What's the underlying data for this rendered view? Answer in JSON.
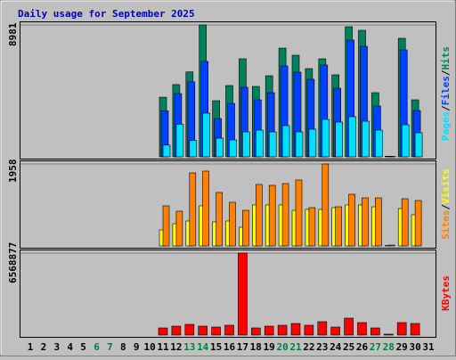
{
  "chart_data": [
    {
      "type": "bar",
      "title": "Daily usage for September 2025",
      "title_color": "#0000c0",
      "legend_separator": "/",
      "ylim": [
        0,
        8981
      ],
      "yticks": [
        8981
      ],
      "series": [
        {
          "name": "Hits",
          "color": "#00805c",
          "values": [
            0,
            0,
            0,
            0,
            0,
            0,
            0,
            0,
            0,
            0,
            4060,
            4921,
            5782,
            8981,
            3823,
            4855,
            6675,
            4794,
            5522,
            7403,
            6918,
            6008,
            6675,
            5583,
            8860,
            8617,
            4369,
            40,
            8071,
            3884,
            0
          ]
        },
        {
          "name": "Files",
          "color": "#0040ff",
          "values": [
            0,
            0,
            0,
            0,
            0,
            0,
            0,
            0,
            0,
            0,
            3137,
            4306,
            5106,
            6493,
            2609,
            3641,
            4733,
            3884,
            4369,
            6190,
            5765,
            5280,
            6251,
            4672,
            7949,
            7525,
            3459,
            30,
            7282,
            3155,
            0
          ]
        },
        {
          "name": "Pages",
          "color": "#00e0ff",
          "values": [
            0,
            0,
            0,
            0,
            0,
            0,
            0,
            0,
            0,
            0,
            800,
            2214,
            1107,
            2973,
            1274,
            1153,
            1699,
            1820,
            1699,
            2124,
            1699,
            1881,
            2549,
            2367,
            2731,
            2427,
            1820,
            20,
            2184,
            1638,
            0
          ]
        }
      ]
    },
    {
      "type": "bar",
      "legend_separator": "/",
      "ylim": [
        0,
        1958
      ],
      "yticks": [
        1958
      ],
      "series": [
        {
          "name": "Visits",
          "color": "#ffff00",
          "values": [
            0,
            0,
            0,
            0,
            0,
            0,
            0,
            0,
            0,
            0,
            383,
            532,
            596,
            958,
            575,
            596,
            447,
            979,
            979,
            979,
            851,
            873,
            873,
            915,
            979,
            979,
            936,
            10,
            894,
            745,
            0
          ]
        },
        {
          "name": "Sites",
          "color": "#ff8000",
          "values": [
            0,
            0,
            0,
            0,
            0,
            0,
            0,
            0,
            0,
            0,
            958,
            830,
            1745,
            1788,
            1277,
            1043,
            851,
            1469,
            1447,
            1490,
            1575,
            915,
            1958,
            936,
            1234,
            1149,
            1149,
            21,
            1128,
            1085,
            0
          ]
        }
      ]
    },
    {
      "type": "bar",
      "ylim": [
        0,
        6568877
      ],
      "yticks": [
        6568877
      ],
      "categories": [
        "1",
        "2",
        "3",
        "4",
        "5",
        "6",
        "7",
        "8",
        "9",
        "10",
        "11",
        "12",
        "13",
        "14",
        "15",
        "16",
        "17",
        "18",
        "19",
        "20",
        "21",
        "22",
        "23",
        "24",
        "25",
        "26",
        "27",
        "28",
        "29",
        "30",
        "31"
      ],
      "category_colors": [
        "#000000",
        "#000000",
        "#000000",
        "#000000",
        "#000000",
        "#008040",
        "#008040",
        "#000000",
        "#000000",
        "#000000",
        "#000000",
        "#000000",
        "#008040",
        "#008040",
        "#000000",
        "#000000",
        "#000000",
        "#000000",
        "#000000",
        "#008040",
        "#008040",
        "#000000",
        "#000000",
        "#000000",
        "#000000",
        "#000000",
        "#008040",
        "#008040",
        "#000000",
        "#000000",
        "#000000"
      ],
      "series": [
        {
          "name": "KBytes",
          "color": "#ff0000",
          "values": [
            0,
            0,
            0,
            0,
            0,
            0,
            0,
            0,
            0,
            0,
            571207,
            714009,
            857000,
            714009,
            642600,
            785400,
            6568877,
            571200,
            714009,
            785400,
            928200,
            785400,
            1071000,
            642600,
            1356600,
            999600,
            571200,
            71400,
            999600,
            928200,
            0
          ]
        }
      ]
    }
  ]
}
